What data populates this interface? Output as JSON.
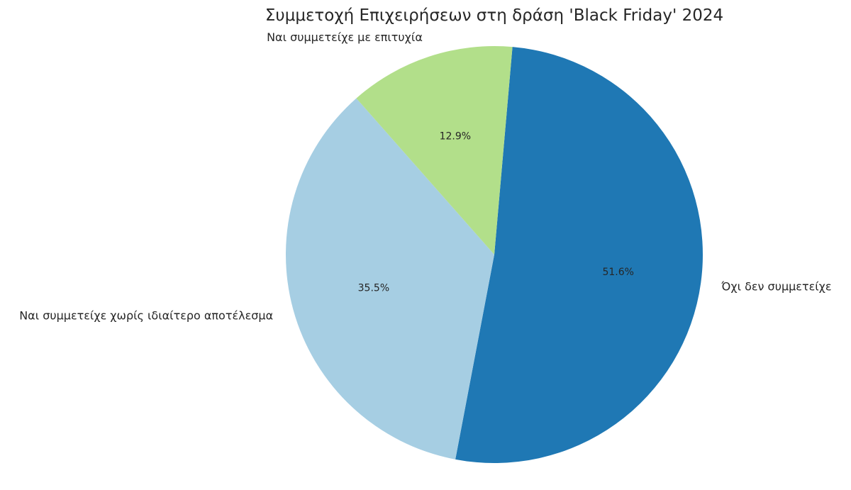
{
  "chart_data": {
    "type": "pie",
    "title": "Συμμετοχή Επιχειρήσεων στη δράση 'Black Friday' 2024",
    "categories": [
      "Όχι δεν συμμετείχε",
      "Ναι συμμετείχε χωρίς ιδιαίτερο αποτέλεσμα",
      "Ναι συμμετείχε με επιτυχία"
    ],
    "values": [
      51.6,
      35.5,
      12.9
    ],
    "value_labels": [
      "51.6%",
      "35.5%",
      "12.9%"
    ],
    "colors": [
      "#1f78b4",
      "#a6cee3",
      "#b2df8a"
    ],
    "start_angle_deg": 85,
    "direction": "clockwise",
    "legend": "none"
  }
}
